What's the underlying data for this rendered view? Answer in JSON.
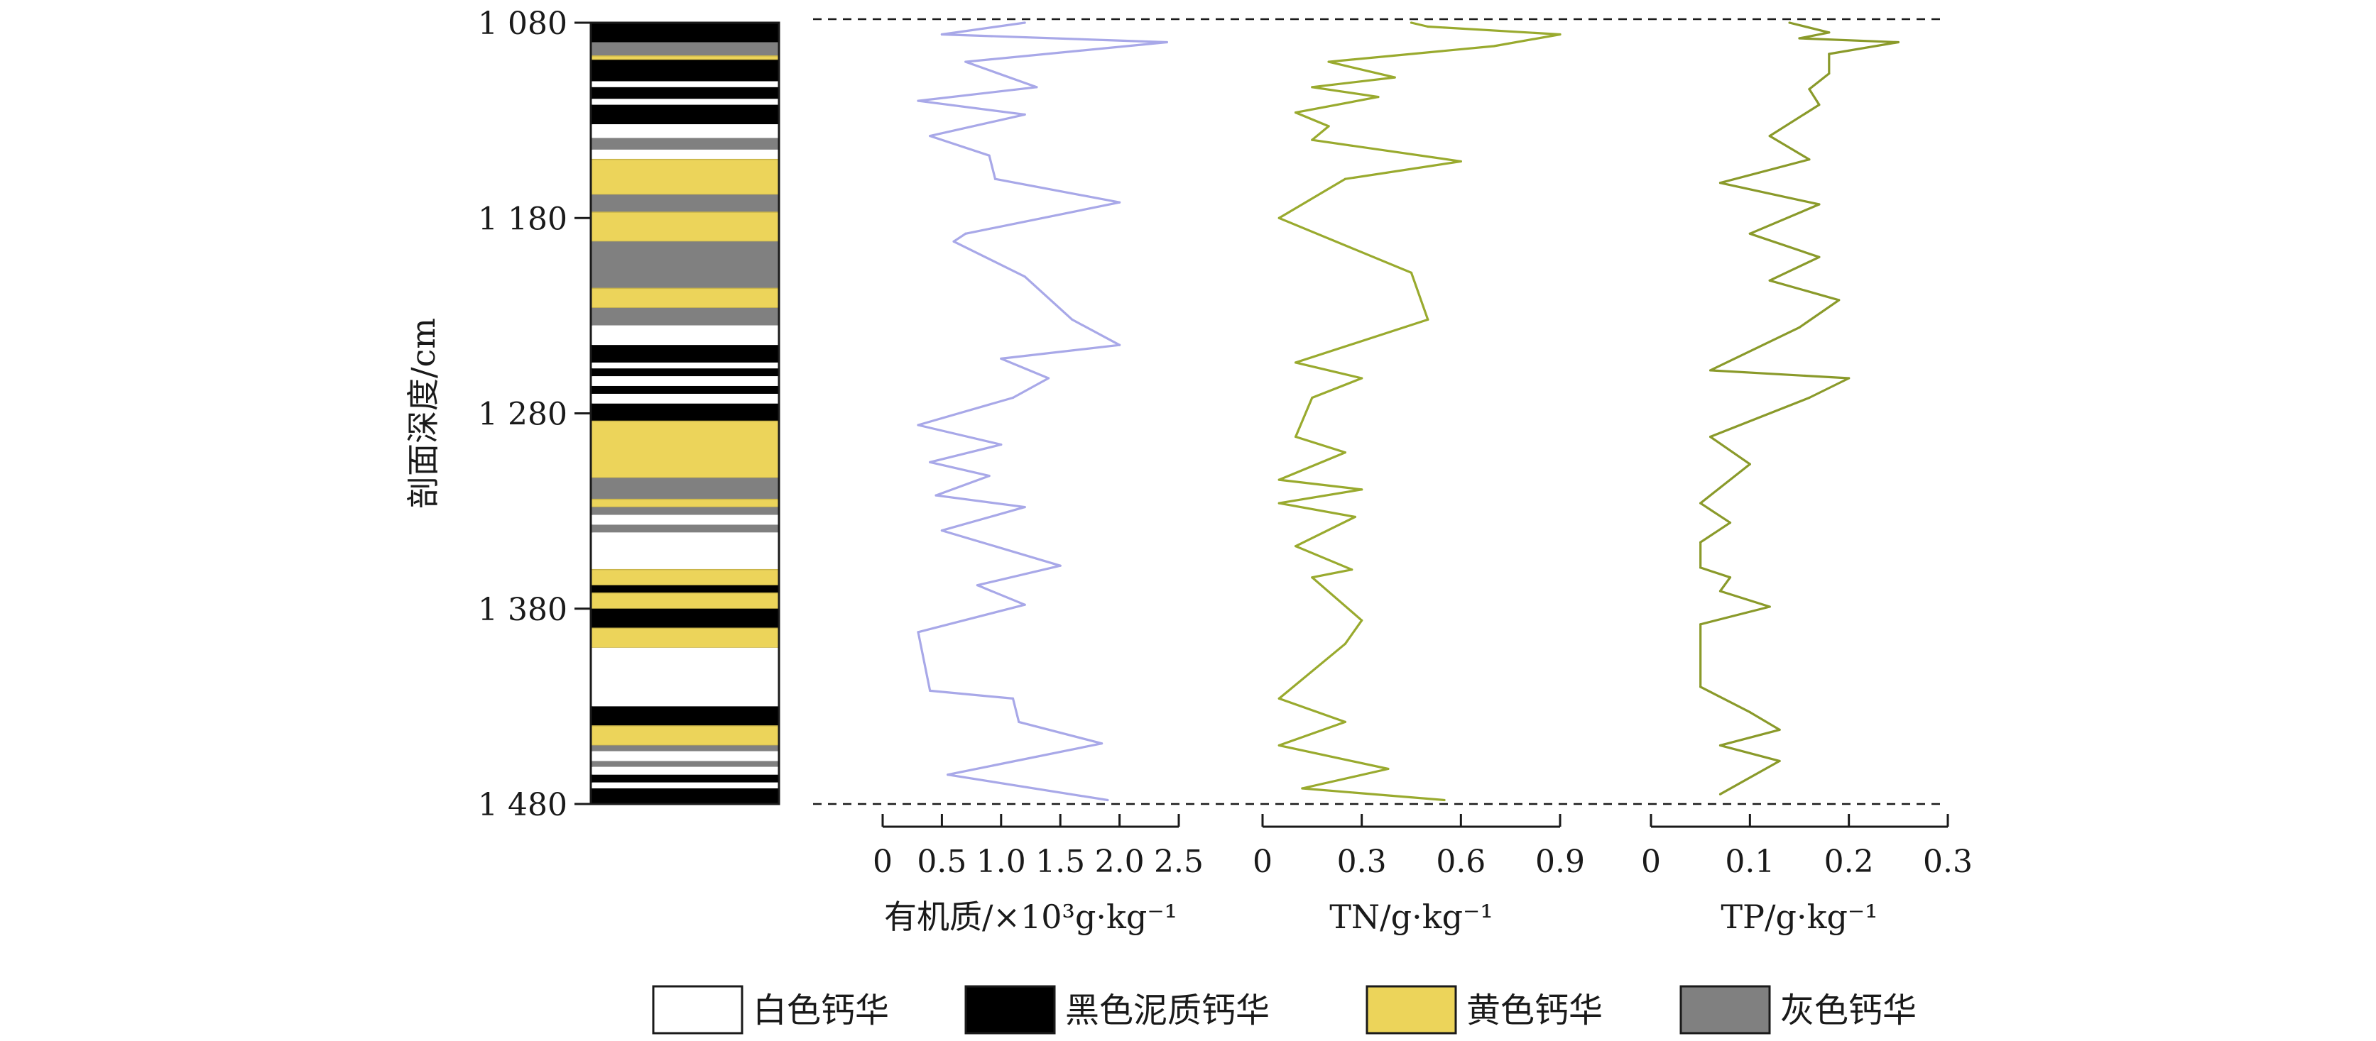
{
  "chart_data": {
    "type": "line",
    "depth_axis": {
      "label": "剖面深度/cm",
      "range": [
        1080,
        1480
      ],
      "ticks": [
        1080,
        1180,
        1280,
        1380,
        1480
      ],
      "tick_labels": [
        "1 080",
        "1 180",
        "1 280",
        "1 380",
        "1 480"
      ],
      "inverted": true
    },
    "stratigraphic_column": {
      "layers": [
        {
          "top": 1080,
          "bottom": 1090,
          "type": "black"
        },
        {
          "top": 1090,
          "bottom": 1097,
          "type": "gray"
        },
        {
          "top": 1097,
          "bottom": 1099,
          "type": "yellow"
        },
        {
          "top": 1099,
          "bottom": 1110,
          "type": "black"
        },
        {
          "top": 1110,
          "bottom": 1113,
          "type": "white"
        },
        {
          "top": 1113,
          "bottom": 1119,
          "type": "black"
        },
        {
          "top": 1119,
          "bottom": 1122,
          "type": "white"
        },
        {
          "top": 1122,
          "bottom": 1132,
          "type": "black"
        },
        {
          "top": 1132,
          "bottom": 1139,
          "type": "white"
        },
        {
          "top": 1139,
          "bottom": 1145,
          "type": "gray"
        },
        {
          "top": 1145,
          "bottom": 1150,
          "type": "white"
        },
        {
          "top": 1150,
          "bottom": 1168,
          "type": "yellow"
        },
        {
          "top": 1168,
          "bottom": 1177,
          "type": "gray"
        },
        {
          "top": 1177,
          "bottom": 1192,
          "type": "yellow"
        },
        {
          "top": 1192,
          "bottom": 1216,
          "type": "gray"
        },
        {
          "top": 1216,
          "bottom": 1226,
          "type": "yellow"
        },
        {
          "top": 1226,
          "bottom": 1235,
          "type": "gray"
        },
        {
          "top": 1235,
          "bottom": 1245,
          "type": "white"
        },
        {
          "top": 1245,
          "bottom": 1254,
          "type": "black"
        },
        {
          "top": 1254,
          "bottom": 1257,
          "type": "white"
        },
        {
          "top": 1257,
          "bottom": 1261,
          "type": "black"
        },
        {
          "top": 1261,
          "bottom": 1266,
          "type": "white"
        },
        {
          "top": 1266,
          "bottom": 1270,
          "type": "black"
        },
        {
          "top": 1270,
          "bottom": 1275,
          "type": "white"
        },
        {
          "top": 1275,
          "bottom": 1284,
          "type": "black"
        },
        {
          "top": 1284,
          "bottom": 1313,
          "type": "yellow"
        },
        {
          "top": 1313,
          "bottom": 1324,
          "type": "gray"
        },
        {
          "top": 1324,
          "bottom": 1328,
          "type": "yellow"
        },
        {
          "top": 1328,
          "bottom": 1332,
          "type": "gray"
        },
        {
          "top": 1332,
          "bottom": 1337,
          "type": "white"
        },
        {
          "top": 1337,
          "bottom": 1341,
          "type": "gray"
        },
        {
          "top": 1341,
          "bottom": 1360,
          "type": "white"
        },
        {
          "top": 1360,
          "bottom": 1368,
          "type": "yellow"
        },
        {
          "top": 1368,
          "bottom": 1372,
          "type": "black"
        },
        {
          "top": 1372,
          "bottom": 1380,
          "type": "yellow"
        },
        {
          "top": 1380,
          "bottom": 1390,
          "type": "black"
        },
        {
          "top": 1390,
          "bottom": 1400,
          "type": "yellow"
        },
        {
          "top": 1400,
          "bottom": 1430,
          "type": "white"
        },
        {
          "top": 1430,
          "bottom": 1440,
          "type": "black"
        },
        {
          "top": 1440,
          "bottom": 1450,
          "type": "yellow"
        },
        {
          "top": 1450,
          "bottom": 1453,
          "type": "gray"
        },
        {
          "top": 1453,
          "bottom": 1458,
          "type": "white"
        },
        {
          "top": 1458,
          "bottom": 1461,
          "type": "gray"
        },
        {
          "top": 1461,
          "bottom": 1465,
          "type": "white"
        },
        {
          "top": 1465,
          "bottom": 1469,
          "type": "black"
        },
        {
          "top": 1469,
          "bottom": 1472,
          "type": "white"
        },
        {
          "top": 1472,
          "bottom": 1480,
          "type": "black"
        }
      ]
    },
    "series": [
      {
        "key": "om",
        "xlabel": "有机质/×10³g·kg⁻¹",
        "xlim": [
          0,
          2.5
        ],
        "xticks": [
          0,
          0.5,
          1.0,
          1.5,
          2.0,
          2.5
        ],
        "xtick_labels": [
          "0",
          "0.5",
          "1.0",
          "1.5",
          "2.0",
          "2.5"
        ],
        "color": "#a8a8e8",
        "depth": [
          1080,
          1086,
          1090,
          1100,
          1113,
          1120,
          1127,
          1138,
          1148,
          1160,
          1172,
          1188,
          1192,
          1210,
          1232,
          1245,
          1252,
          1262,
          1272,
          1286,
          1296,
          1305,
          1312,
          1322,
          1328,
          1340,
          1358,
          1368,
          1378,
          1392,
          1422,
          1426,
          1438,
          1449,
          1465,
          1478
        ],
        "values": [
          1.2,
          0.5,
          2.4,
          0.7,
          1.3,
          0.3,
          1.2,
          0.4,
          0.9,
          0.95,
          2.0,
          0.7,
          0.6,
          1.2,
          1.6,
          2.0,
          1.0,
          1.4,
          1.1,
          0.3,
          1.0,
          0.4,
          0.9,
          0.45,
          1.2,
          0.5,
          1.5,
          0.8,
          1.2,
          0.3,
          0.4,
          1.1,
          1.15,
          1.85,
          0.55,
          1.9
        ]
      },
      {
        "key": "tn",
        "xlabel": "TN/g·kg⁻¹",
        "xlim": [
          0,
          0.9
        ],
        "xticks": [
          0,
          0.3,
          0.6,
          0.9
        ],
        "xtick_labels": [
          "0",
          "0.3",
          "0.6",
          "0.9"
        ],
        "color": "#99aa2e",
        "depth": [
          1080,
          1082,
          1086,
          1092,
          1100,
          1108,
          1113,
          1118,
          1126,
          1133,
          1140,
          1151,
          1160,
          1180,
          1208,
          1232,
          1254,
          1262,
          1272,
          1292,
          1300,
          1314,
          1319,
          1326,
          1333,
          1348,
          1360,
          1364,
          1386,
          1398,
          1426,
          1438,
          1450,
          1462,
          1472,
          1478
        ],
        "values": [
          0.45,
          0.5,
          0.9,
          0.7,
          0.2,
          0.4,
          0.15,
          0.35,
          0.1,
          0.2,
          0.15,
          0.6,
          0.25,
          0.05,
          0.45,
          0.5,
          0.1,
          0.3,
          0.15,
          0.1,
          0.25,
          0.05,
          0.3,
          0.05,
          0.28,
          0.1,
          0.27,
          0.15,
          0.3,
          0.25,
          0.05,
          0.25,
          0.05,
          0.38,
          0.12,
          0.55
        ]
      },
      {
        "key": "tp",
        "xlabel": "TP/g·kg⁻¹",
        "xlim": [
          0,
          0.3
        ],
        "xticks": [
          0,
          0.1,
          0.2,
          0.3
        ],
        "xtick_labels": [
          "0",
          "0.1",
          "0.2",
          "0.3"
        ],
        "color": "#8a9a2a",
        "depth": [
          1080,
          1085,
          1088,
          1090,
          1096,
          1106,
          1114,
          1122,
          1138,
          1150,
          1162,
          1173,
          1188,
          1200,
          1212,
          1222,
          1236,
          1258,
          1262,
          1272,
          1292,
          1306,
          1318,
          1326,
          1336,
          1346,
          1359,
          1364,
          1371,
          1379,
          1388,
          1420,
          1433,
          1442,
          1450,
          1458,
          1475
        ],
        "values": [
          0.14,
          0.18,
          0.15,
          0.25,
          0.18,
          0.18,
          0.16,
          0.17,
          0.12,
          0.16,
          0.07,
          0.17,
          0.1,
          0.17,
          0.12,
          0.19,
          0.15,
          0.06,
          0.2,
          0.16,
          0.06,
          0.1,
          0.07,
          0.05,
          0.08,
          0.05,
          0.05,
          0.08,
          0.07,
          0.12,
          0.05,
          0.05,
          0.1,
          0.13,
          0.07,
          0.13,
          0.07
        ]
      }
    ],
    "legend": {
      "placement": "bottom",
      "items": [
        {
          "type": "white",
          "label": "白色钙华",
          "color": "#ffffff"
        },
        {
          "type": "black",
          "label": "黑色泥质钙华",
          "color": "#000000"
        },
        {
          "type": "yellow",
          "label": "黄色钙华",
          "color": "#ecd45a"
        },
        {
          "type": "gray",
          "label": "灰色钙华",
          "color": "#808080"
        }
      ]
    }
  }
}
